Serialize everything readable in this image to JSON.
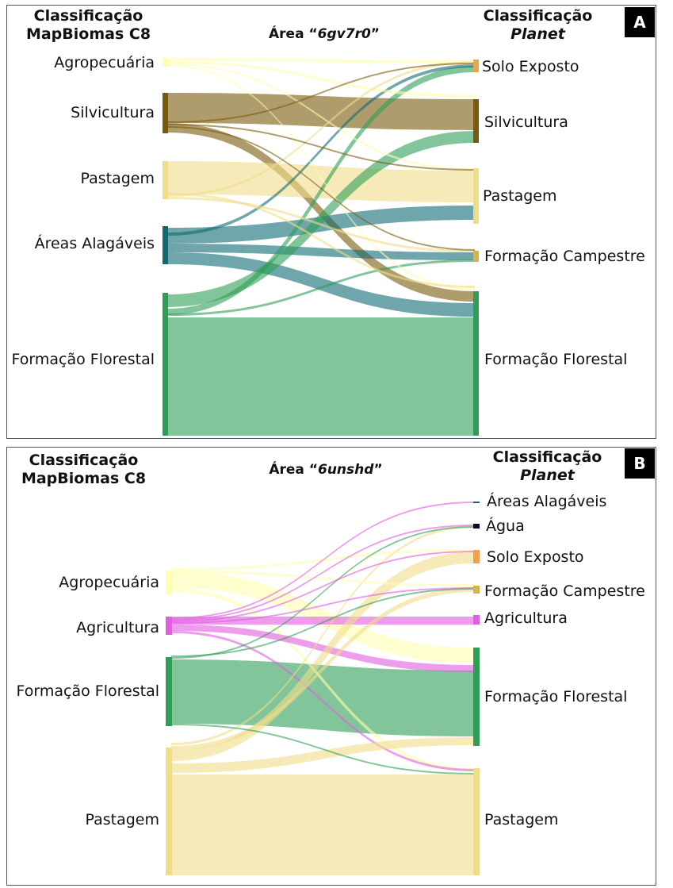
{
  "panels": [
    {
      "id": "A",
      "badge": "A",
      "left_heading": [
        "Classificação",
        "MapBiomas C8"
      ],
      "right_heading": [
        "Classificação",
        "Planet"
      ],
      "title_prefix": "Área “",
      "title_code": "6gv7r0",
      "title_suffix": "”",
      "left_nodes": [
        "Agropecuária",
        "Silvicultura",
        "Pastagem",
        "Áreas Alagáveis",
        "Formação Florestal"
      ],
      "right_nodes": [
        "Solo Exposto",
        "Silvicultura",
        "Pastagem",
        "Formação Campestre",
        "Formação Florestal"
      ]
    },
    {
      "id": "B",
      "badge": "B",
      "left_heading": [
        "Classificação",
        "MapBiomas C8"
      ],
      "right_heading": [
        "Classificação",
        "Planet"
      ],
      "title_prefix": "Área “",
      "title_code": "6unshd",
      "title_suffix": "”",
      "left_nodes": [
        "Agropecuária",
        "Agricultura",
        "Formação Florestal",
        "Pastagem"
      ],
      "right_nodes": [
        "Áreas Alagáveis",
        "Água",
        "Solo Exposto",
        "Formação Campestre",
        "Agricultura",
        "Formação Florestal",
        "Pastagem"
      ]
    }
  ],
  "colors": {
    "agropecuaria": "#fefeb0",
    "silvicultura": "#7a5a0a",
    "pastagem": "#f0dd88",
    "areas_alagaveis": "#0f6a73",
    "formacao_florestal": "#2e9e57",
    "solo_exposto": "#f4a04a",
    "formacao_campestre": "#d8b448",
    "agricultura": "#e05ee0",
    "agua": "#0a0a2a"
  }
}
